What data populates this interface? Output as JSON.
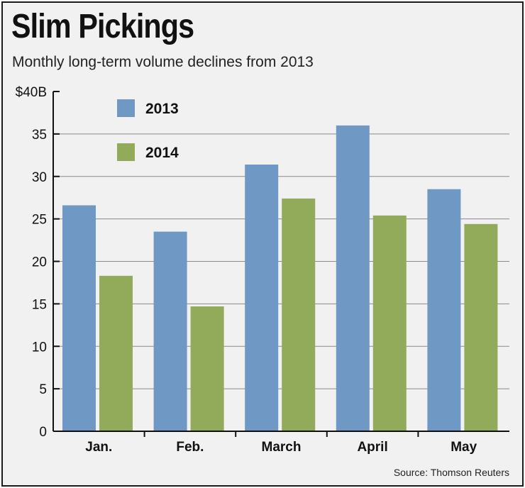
{
  "title": "Slim Pickings",
  "subtitle": "Monthly long-term volume declines from 2013",
  "source": "Source: Thomson Reuters",
  "chart_data": {
    "type": "bar",
    "categories": [
      "Jan.",
      "Feb.",
      "March",
      "April",
      "May"
    ],
    "series": [
      {
        "name": "2013",
        "color": "#7098c4",
        "values": [
          26.6,
          23.5,
          31.4,
          36.0,
          28.5
        ]
      },
      {
        "name": "2014",
        "color": "#92ab5a",
        "values": [
          18.3,
          14.7,
          27.4,
          25.4,
          24.4
        ]
      }
    ],
    "y_ticks": [
      0,
      5,
      10,
      15,
      20,
      25,
      30,
      35
    ],
    "y_top_label": "$40B",
    "ylim": [
      0,
      40
    ],
    "grid": true,
    "legend_position": "top-left"
  }
}
